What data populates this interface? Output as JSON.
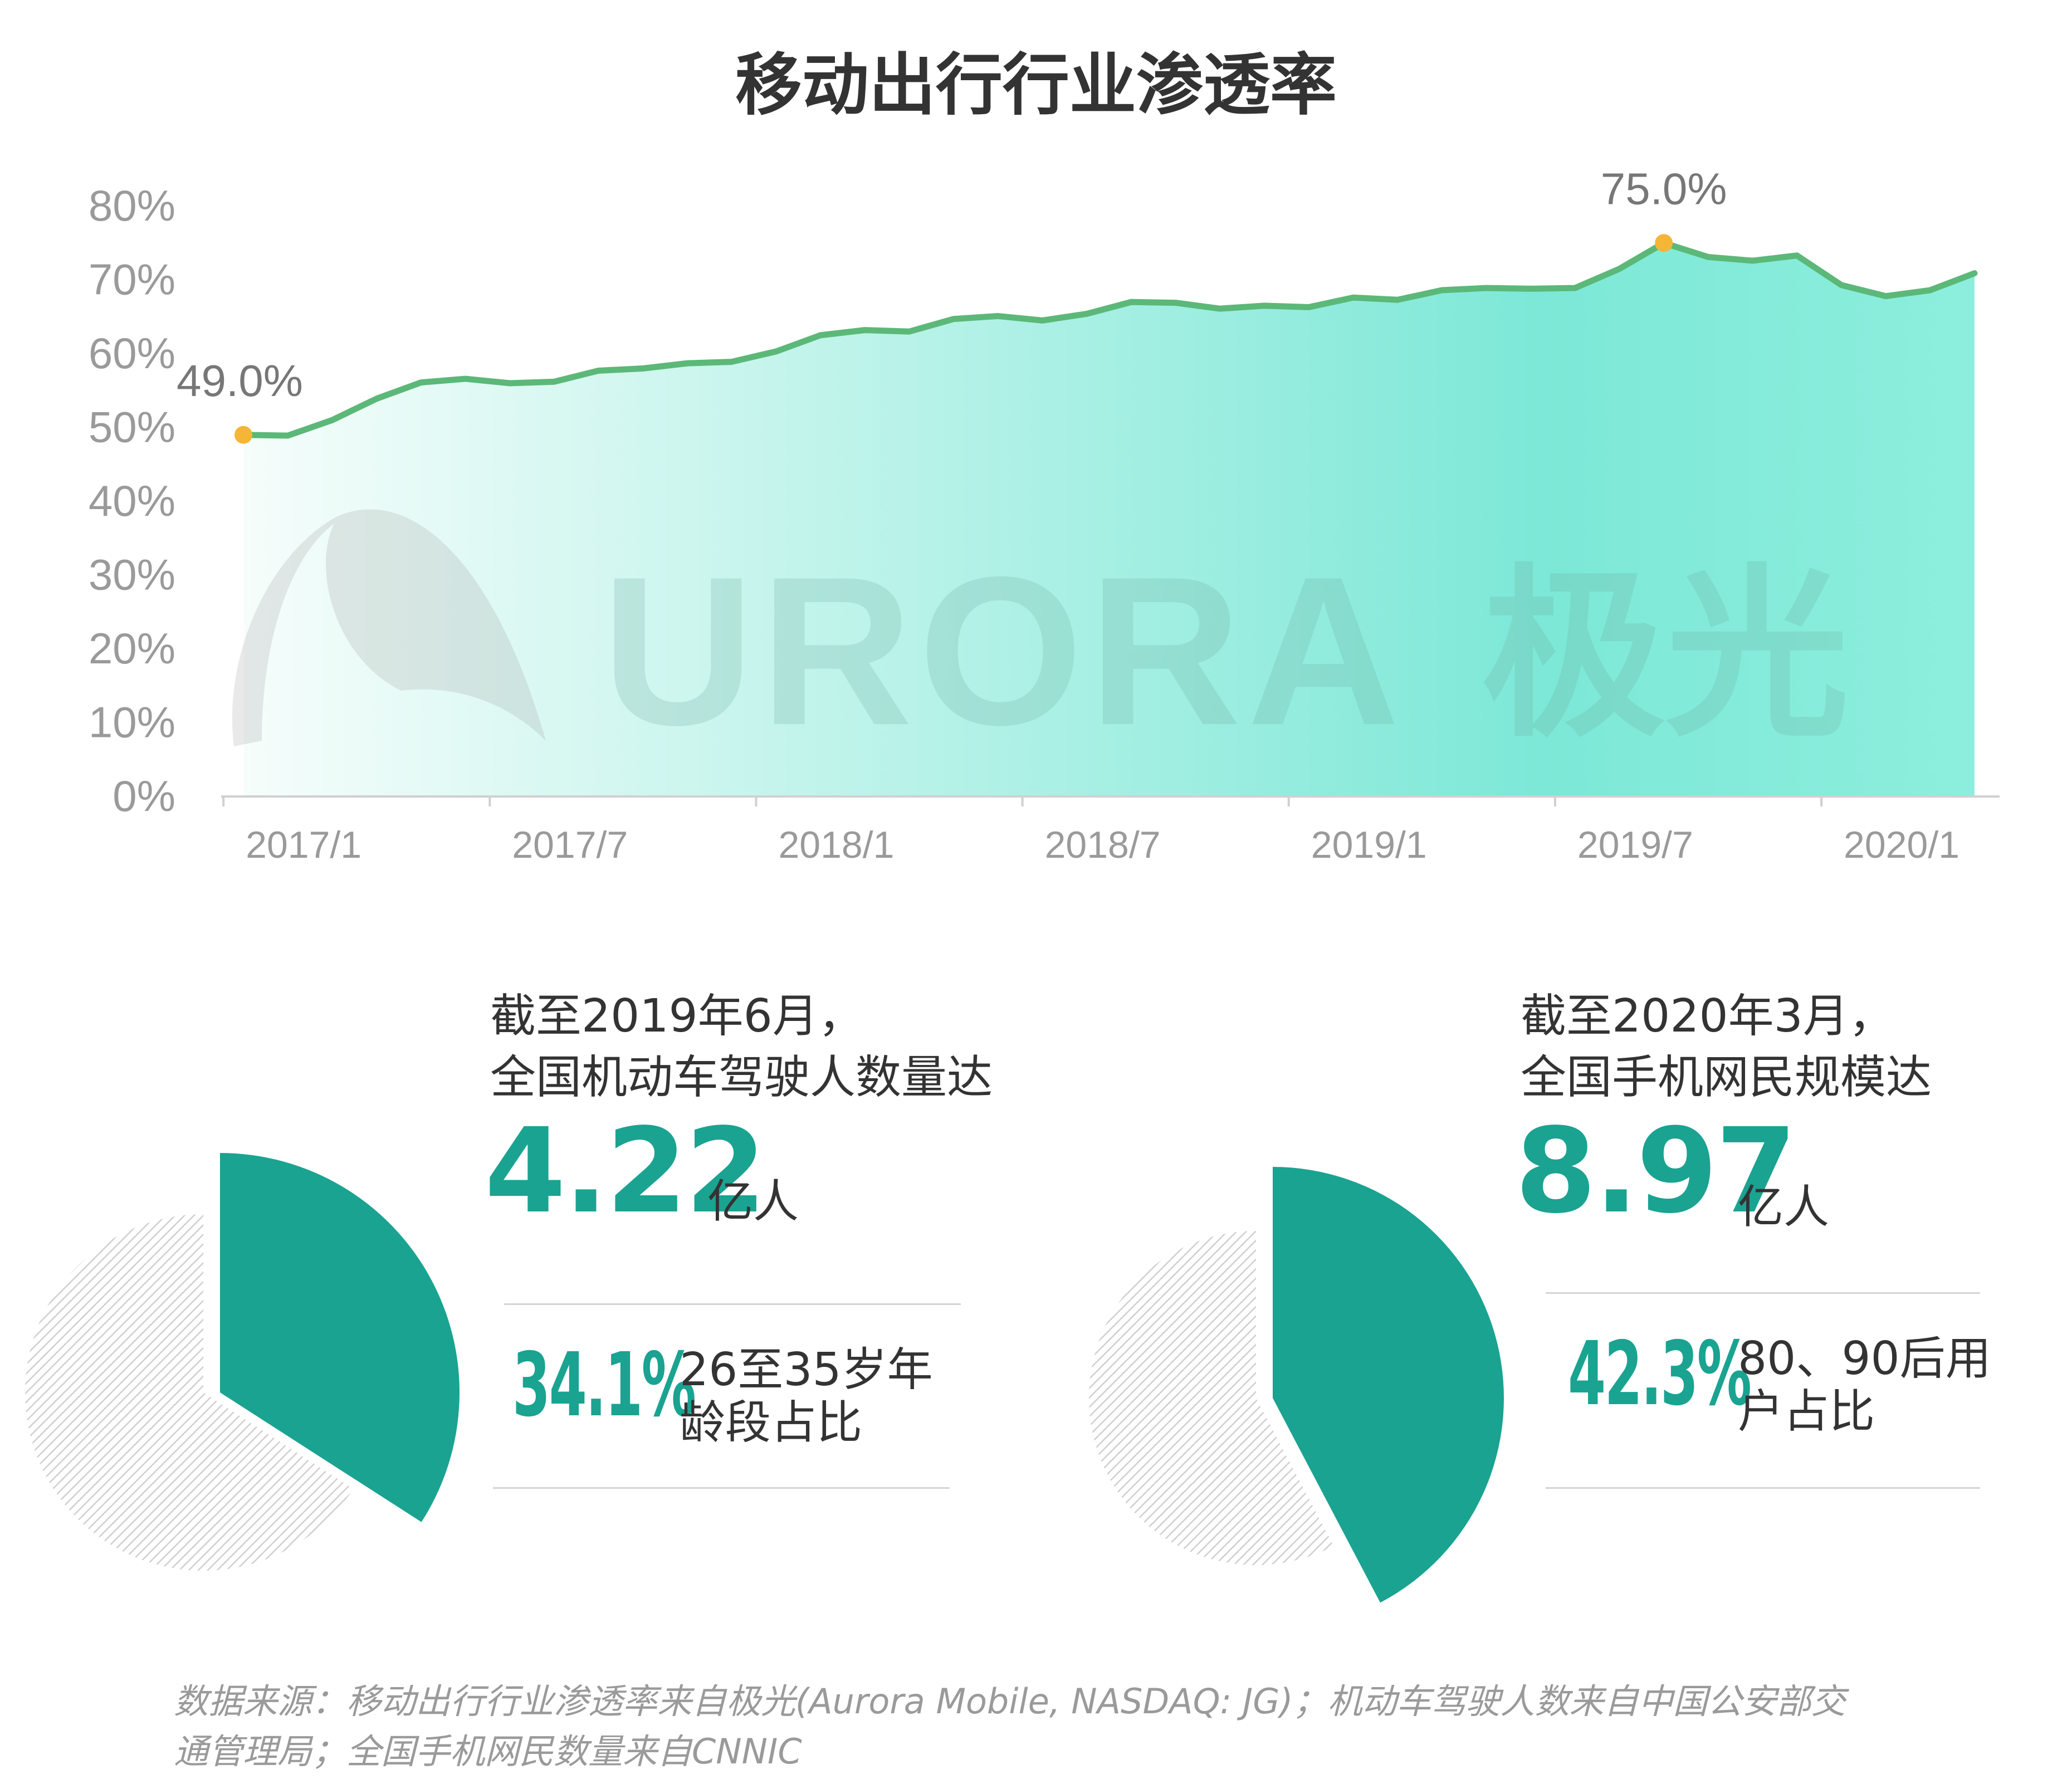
{
  "title": "移动出行行业渗透率",
  "chart_data": {
    "type": "area",
    "title": "移动出行行业渗透率",
    "x": [
      "2017/1",
      "2017/2",
      "2017/3",
      "2017/4",
      "2017/5",
      "2017/6",
      "2017/7",
      "2017/8",
      "2017/9",
      "2017/10",
      "2017/11",
      "2017/12",
      "2018/1",
      "2018/2",
      "2018/3",
      "2018/4",
      "2018/5",
      "2018/6",
      "2018/7",
      "2018/8",
      "2018/9",
      "2018/10",
      "2018/11",
      "2018/12",
      "2019/1",
      "2019/2",
      "2019/3",
      "2019/4",
      "2019/5",
      "2019/6",
      "2019/7",
      "2019/8",
      "2019/9",
      "2019/10",
      "2019/11",
      "2019/12",
      "2020/1",
      "2020/2",
      "2020/3",
      "2020/4"
    ],
    "x_tick_labels": [
      "2017/1",
      "2017/7",
      "2018/1",
      "2018/7",
      "2019/1",
      "2019/7",
      "2020/1"
    ],
    "y_tick_labels": [
      "0%",
      "10%",
      "20%",
      "30%",
      "40%",
      "50%",
      "60%",
      "70%",
      "80%"
    ],
    "ylim": [
      0,
      80
    ],
    "series": [
      {
        "values": [
          49.0,
          48.9,
          51.0,
          53.9,
          56.1,
          56.6,
          56.0,
          56.2,
          57.7,
          58.0,
          58.7,
          58.9,
          60.3,
          62.5,
          63.2,
          63.0,
          64.7,
          65.1,
          64.5,
          65.4,
          67.0,
          66.9,
          66.1,
          66.5,
          66.3,
          67.6,
          67.3,
          68.6,
          68.9,
          68.8,
          68.9,
          71.5,
          75.0,
          73.1,
          72.6,
          73.3,
          69.3,
          67.8,
          68.6,
          70.9
        ],
        "color": "#5cb878"
      }
    ],
    "annotations": [
      {
        "x": "2017/1",
        "label": "49.0%"
      },
      {
        "x": "2019/9",
        "label": "75.0%"
      }
    ],
    "marker_color": "#f5b536",
    "area_gradient": [
      "#f6fdfb",
      "#7de8d7"
    ],
    "grid": false,
    "watermark": "URORA 极光"
  },
  "panels": [
    {
      "line1": "截至2019年6月，",
      "line2": "全国机动车驾驶人数量达",
      "value": "4.22",
      "unit": "亿人",
      "percent": "34.1%",
      "percent_value": 34.1,
      "desc1": "26至35岁年",
      "desc2": "龄段占比"
    },
    {
      "line1": "截至2020年3月，",
      "line2": "全国手机网民规模达",
      "value": "8.97",
      "unit": "亿人",
      "percent": "42.3%",
      "percent_value": 42.3,
      "desc1": "80、90后用",
      "desc2": "户占比"
    }
  ],
  "colors": {
    "accent": "#1aa391",
    "hatch": "#cfcfcf"
  },
  "source": {
    "line1": "数据来源：移动出行行业渗透率来自极光(Aurora Mobile, NASDAQ: JG)；机动车驾驶人数来自中国公安部交",
    "line2": "通管理局；全国手机网民数量来自CNNIC"
  }
}
